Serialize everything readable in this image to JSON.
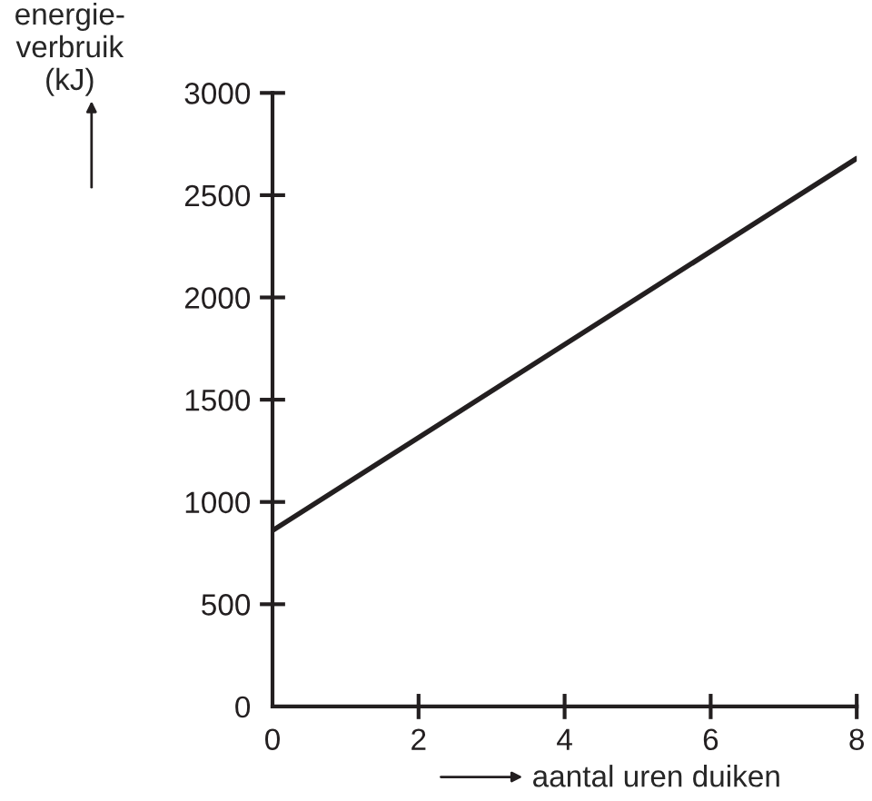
{
  "chart_data": {
    "type": "line",
    "xlabel": "aantal uren duiken",
    "ylabel": "energie-\nverbruik\n(kJ)",
    "x": [
      0,
      8
    ],
    "series": [
      {
        "color": "#231f20",
        "values": [
          860,
          2680
        ]
      }
    ],
    "xlim": [
      0,
      8
    ],
    "xticks": [
      0,
      2,
      4,
      6,
      8
    ],
    "ylim": [
      0,
      3000
    ],
    "yticks": [
      0,
      500,
      1000,
      1500,
      2000,
      2500,
      3000
    ],
    "grid": false,
    "legend": false,
    "marker": "none",
    "line_style": "solid"
  }
}
